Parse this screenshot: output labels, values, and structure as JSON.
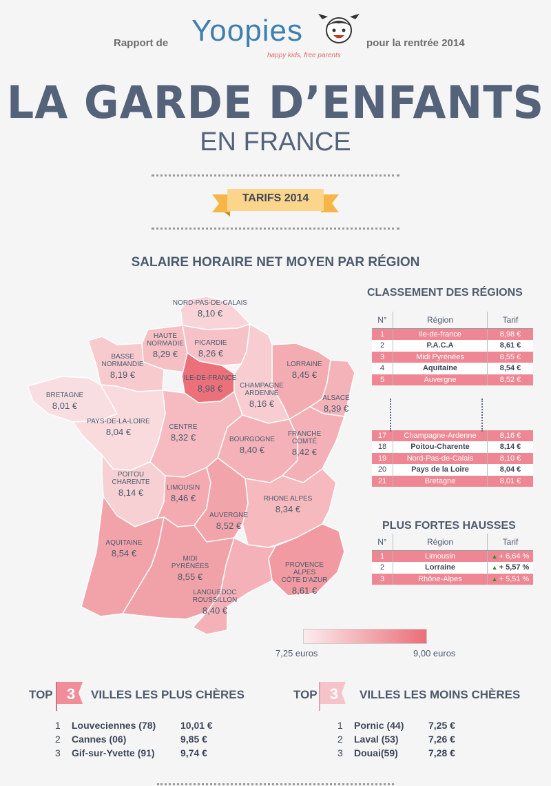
{
  "header": {
    "left_text": "Rapport de",
    "logo": "Yoopies",
    "tagline": "happy kids, free parents",
    "right_text": "pour la rentrée 2014"
  },
  "title": "LA GARDE D’ENFANTS",
  "subtitle": "EN FRANCE",
  "ribbon": "TARIFS 2014",
  "map_title": "SALAIRE HORAIRE NET MOYEN PAR RÉGION",
  "legend": {
    "min_label": "7,25 euros",
    "max_label": "9,00 euros",
    "min": 7.25,
    "max": 9.0,
    "color_min": "#fbecee",
    "color_max": "#eb6e78"
  },
  "chart_data": {
    "type": "choropleth",
    "regions": [
      {
        "name": "NORD-PAS-DE-CALAIS",
        "value": 8.1,
        "label": "8,10 €"
      },
      {
        "name": "HAUTE NORMADIE",
        "value": 8.29,
        "label": "8,29 €"
      },
      {
        "name": "PICARDIE",
        "value": 8.26,
        "label": "8,26 €"
      },
      {
        "name": "BASSE NORMANDIE",
        "value": 8.19,
        "label": "8,19 €"
      },
      {
        "name": "ILE-DE-FRANCE",
        "value": 8.98,
        "label": "8,98 €"
      },
      {
        "name": "LORRAINE",
        "value": 8.45,
        "label": "8,45 €"
      },
      {
        "name": "CHAMPAGNE ARDENNE",
        "value": 8.16,
        "label": "8,16 €"
      },
      {
        "name": "ALSACE",
        "value": 8.39,
        "label": "8,39 €"
      },
      {
        "name": "BRETAGNE",
        "value": 8.01,
        "label": "8,01 €"
      },
      {
        "name": "PAYS-DE-LA-LOIRE",
        "value": 8.04,
        "label": "8,04 €"
      },
      {
        "name": "CENTRE",
        "value": 8.32,
        "label": "8,32 €"
      },
      {
        "name": "BOURGOGNE",
        "value": 8.4,
        "label": "8,40 €"
      },
      {
        "name": "FRANCHE COMTÉ",
        "value": 8.42,
        "label": "8,42 €"
      },
      {
        "name": "POITOU CHARENTE",
        "value": 8.14,
        "label": "8,14 €"
      },
      {
        "name": "LIMOUSIN",
        "value": 8.46,
        "label": "8,46 €"
      },
      {
        "name": "RHONE ALPES",
        "value": 8.34,
        "label": "8,34 €"
      },
      {
        "name": "AUVERGNE",
        "value": 8.52,
        "label": "8,52 €"
      },
      {
        "name": "AQUITAINE",
        "value": 8.54,
        "label": "8,54 €"
      },
      {
        "name": "MIDI PYRÉNÉES",
        "value": 8.55,
        "label": "8,55 €"
      },
      {
        "name": "PROVENCE ALPES CÔTE D'AZUR",
        "value": 8.61,
        "label": "8,61 €"
      },
      {
        "name": "LANGUEDOC ROUSSILLON",
        "value": 8.4,
        "label": "8,40 €"
      }
    ]
  },
  "classement": {
    "title": "CLASSEMENT DES RÉGIONS",
    "headers": [
      "N°",
      "Région",
      "Tarif"
    ],
    "top": [
      {
        "n": "1",
        "region": "Ile-de-france",
        "tarif": "8,98 €"
      },
      {
        "n": "2",
        "region": "P.A.C.A",
        "tarif": "8,61 €"
      },
      {
        "n": "3",
        "region": "Midi Pyrénées",
        "tarif": "8,55 €"
      },
      {
        "n": "4",
        "region": "Aquitaine",
        "tarif": "8,54 €"
      },
      {
        "n": "5",
        "region": "Auvergne",
        "tarif": "8,52 €"
      }
    ],
    "bottom": [
      {
        "n": "17",
        "region": "Champagne-Ardenne",
        "tarif": "8,16 €"
      },
      {
        "n": "18",
        "region": "Poitou-Charente",
        "tarif": "8,14 €"
      },
      {
        "n": "19",
        "region": "Nord-Pas-de-Calais",
        "tarif": "8,10 €"
      },
      {
        "n": "20",
        "region": "Pays de la Loire",
        "tarif": "8,04 €"
      },
      {
        "n": "21",
        "region": "Bretagne",
        "tarif": "8,01 €"
      }
    ]
  },
  "hausses": {
    "title": "PLUS FORTES HAUSSES",
    "headers": [
      "N°",
      "Région",
      "Tarif"
    ],
    "rows": [
      {
        "n": "1",
        "region": "Limousin",
        "tarif": "+ 6,64 %"
      },
      {
        "n": "2",
        "region": "Lorraine",
        "tarif": "+ 5,57 %"
      },
      {
        "n": "3",
        "region": "Rhône-Alpes",
        "tarif": "+ 5,51 %"
      }
    ]
  },
  "top_chers": {
    "prefix": "TOP",
    "number": "3",
    "title": "VILLES LES PLUS CHÈRES",
    "rows": [
      {
        "n": "1",
        "city": "Louveciennes (78)",
        "price": "10,01 €"
      },
      {
        "n": "2",
        "city": "Cannes (06)",
        "price": "9,85 €"
      },
      {
        "n": "3",
        "city": "Gif-sur-Yvette (91)",
        "price": "9,74 €"
      }
    ]
  },
  "top_moins": {
    "prefix": "TOP",
    "number": "3",
    "title": "VILLES LES MOINS CHÈRES",
    "rows": [
      {
        "n": "1",
        "city": "Pornic (44)",
        "price": "7,25 €"
      },
      {
        "n": "2",
        "city": "Laval (53)",
        "price": "7,26 €"
      },
      {
        "n": "3",
        "city": "Douai(59)",
        "price": "7,28 €"
      }
    ]
  }
}
